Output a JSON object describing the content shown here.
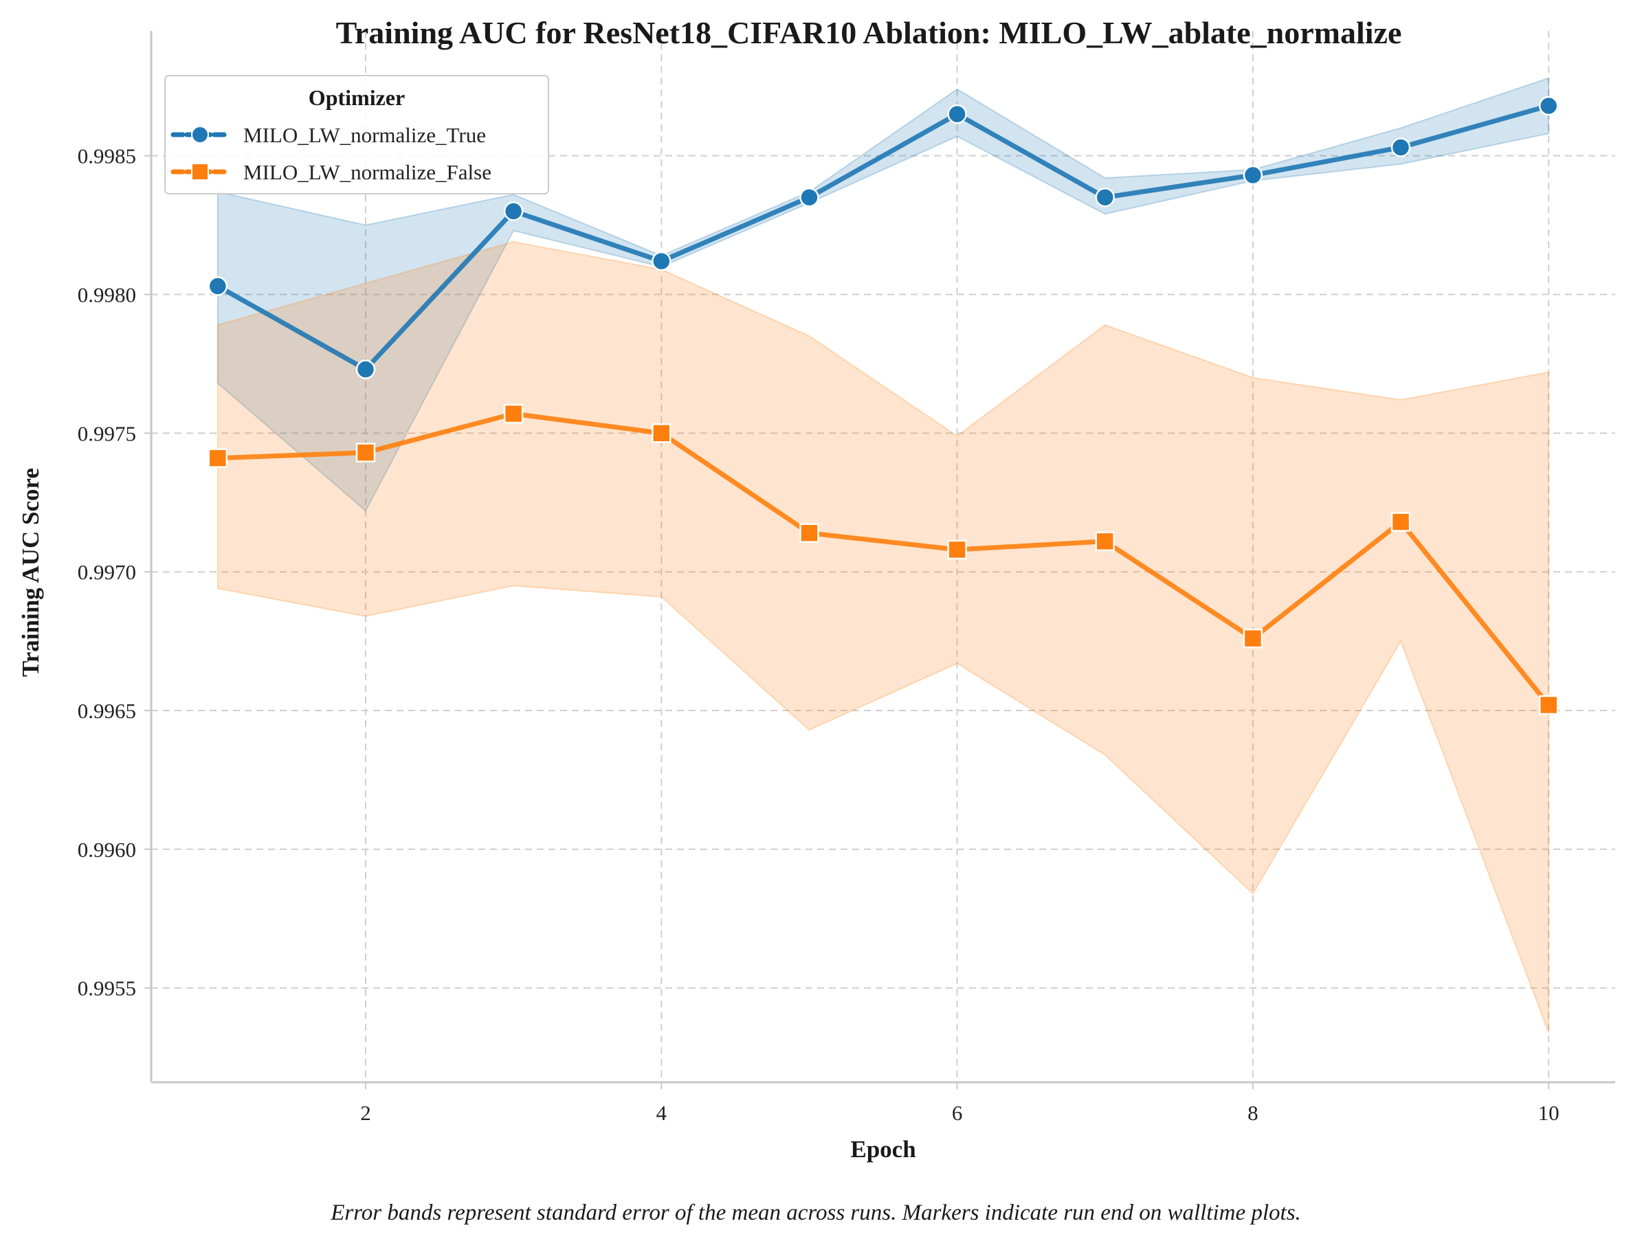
{
  "chart_data": {
    "type": "line",
    "title": "Training AUC for ResNet18_CIFAR10 Ablation: MILO_LW_ablate_normalize",
    "xlabel": "Epoch",
    "ylabel": "Training AUC Score",
    "caption": "Error bands represent standard error of the mean across runs. Markers indicate run end on walltime plots.",
    "xlim": [
      0.55,
      10.45
    ],
    "ylim": [
      0.99516,
      0.99895
    ],
    "x_ticks": [
      2,
      4,
      6,
      8,
      10
    ],
    "y_ticks": [
      0.9955,
      0.996,
      0.9965,
      0.997,
      0.9975,
      0.998,
      0.9985
    ],
    "x_tick_labels": [
      "2",
      "4",
      "6",
      "8",
      "10"
    ],
    "y_tick_labels": [
      "0.9955",
      "0.9960",
      "0.9965",
      "0.9970",
      "0.9975",
      "0.9980",
      "0.9985"
    ],
    "grid": true,
    "legend": {
      "title": "Optimizer",
      "placement": "top-left"
    },
    "x": [
      1,
      2,
      3,
      4,
      5,
      6,
      7,
      8,
      9,
      10
    ],
    "series": [
      {
        "name": "MILO_LW_normalize_True",
        "color": "#1f77b4",
        "marker": "circle",
        "values": [
          0.99803,
          0.99773,
          0.9983,
          0.99812,
          0.99835,
          0.99865,
          0.99835,
          0.99843,
          0.99853,
          0.99868
        ],
        "lower": [
          0.99768,
          0.99722,
          0.99823,
          0.9981,
          0.99833,
          0.99857,
          0.99829,
          0.99841,
          0.99847,
          0.99858
        ],
        "upper": [
          0.99837,
          0.99825,
          0.99836,
          0.99814,
          0.99837,
          0.99874,
          0.99842,
          0.99845,
          0.9986,
          0.99878
        ]
      },
      {
        "name": "MILO_LW_normalize_False",
        "color": "#ff7f0e",
        "marker": "square",
        "values": [
          0.99741,
          0.99743,
          0.99757,
          0.9975,
          0.99714,
          0.99708,
          0.99711,
          0.99676,
          0.99718,
          0.99652
        ],
        "lower": [
          0.99694,
          0.99684,
          0.99695,
          0.99691,
          0.99643,
          0.99667,
          0.99634,
          0.99584,
          0.99675,
          0.99534
        ],
        "upper": [
          0.99789,
          0.99804,
          0.99819,
          0.99809,
          0.99785,
          0.99749,
          0.99789,
          0.9977,
          0.99762,
          0.99772
        ]
      }
    ]
  }
}
